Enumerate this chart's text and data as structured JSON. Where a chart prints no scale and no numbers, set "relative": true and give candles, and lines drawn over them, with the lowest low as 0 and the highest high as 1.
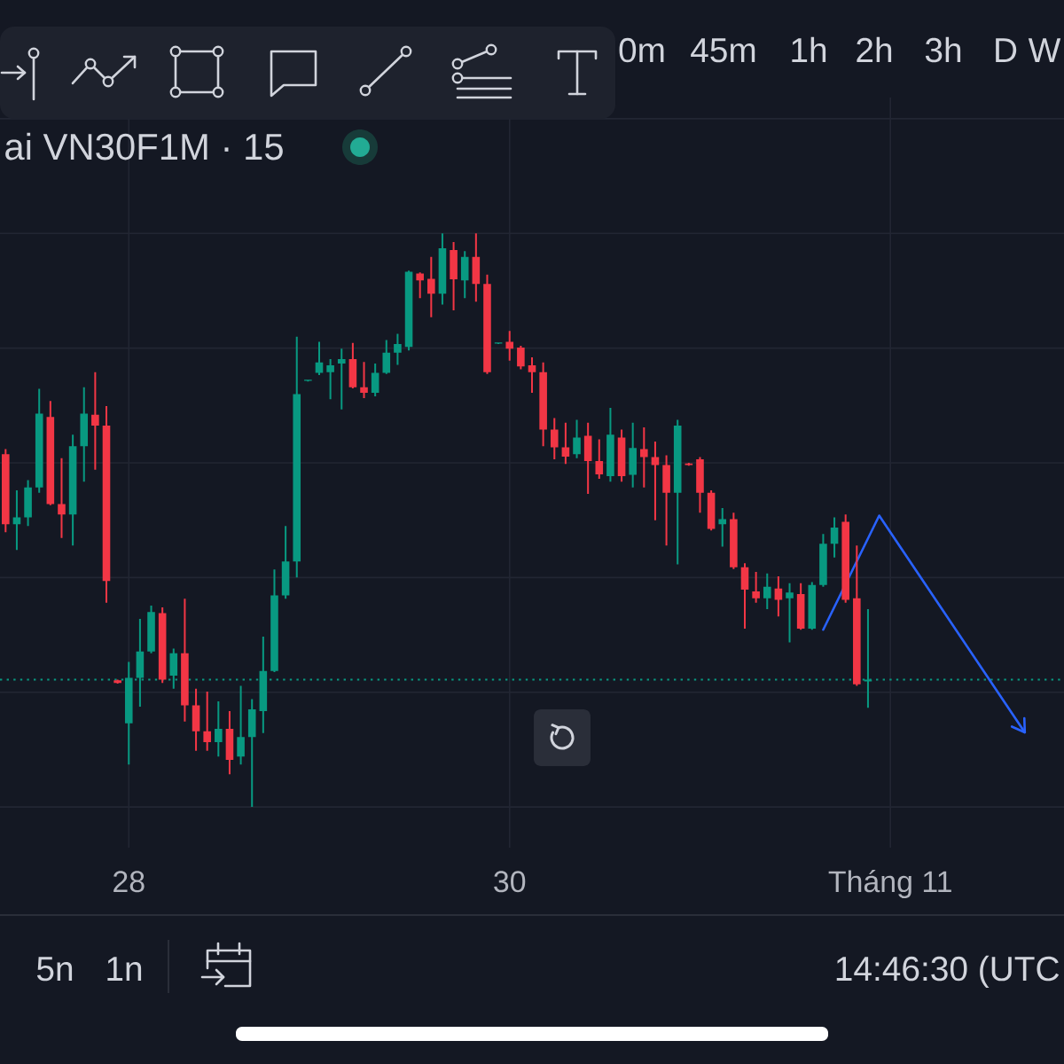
{
  "chart_data": {
    "type": "candlestick",
    "title": "ai VN30F1M · 15",
    "relative": true,
    "grid": true,
    "categories": [
      null,
      null,
      null,
      null,
      null,
      null,
      null,
      null,
      null,
      null,
      null,
      "28",
      null,
      null,
      null,
      null,
      null,
      null,
      null,
      null,
      null,
      null,
      null,
      null,
      null,
      null,
      null,
      null,
      null,
      null,
      null,
      null,
      null,
      null,
      null,
      null,
      null,
      null,
      null,
      null,
      null,
      null,
      null,
      null,
      null,
      "30",
      null,
      null,
      null,
      null,
      null,
      null,
      null,
      null,
      null,
      null,
      null,
      null,
      null,
      null,
      null,
      null,
      null,
      null,
      null,
      null,
      null,
      null,
      null,
      null,
      null,
      null,
      null,
      null,
      null,
      null,
      null,
      null,
      null,
      "Tháng 11",
      null,
      null,
      null,
      null,
      null,
      null,
      null,
      null,
      null,
      null,
      null,
      null,
      null,
      null,
      null
    ],
    "annotations": [
      "0m",
      "45m",
      "1h",
      "2h",
      "3h",
      "D",
      "W",
      "5n",
      "1n",
      "14:46:30 (UTC"
    ],
    "ref_lines": [
      {
        "axis": "y",
        "value": 0.222,
        "color": "#089981",
        "line_style": "dotted"
      }
    ],
    "series": [
      {
        "type": "line",
        "color": "#2962ff",
        "values": [
          null,
          null,
          null,
          null,
          null,
          null,
          null,
          null,
          null,
          null,
          null,
          null,
          null,
          null,
          null,
          null,
          null,
          null,
          null,
          null,
          null,
          null,
          null,
          null,
          null,
          null,
          null,
          null,
          null,
          null,
          null,
          null,
          null,
          null,
          null,
          null,
          null,
          null,
          null,
          null,
          null,
          null,
          null,
          null,
          null,
          null,
          null,
          null,
          null,
          null,
          null,
          null,
          null,
          null,
          null,
          null,
          null,
          null,
          null,
          null,
          null,
          null,
          null,
          null,
          null,
          null,
          null,
          null,
          null,
          null,
          null,
          null,
          null,
          0.309,
          null,
          null,
          null,
          null,
          0.508,
          null,
          null,
          null,
          null,
          null,
          null,
          null,
          null,
          null,
          null,
          null,
          null,
          0.13,
          null,
          null,
          null
        ]
      },
      {
        "ohlc": [
          [
            0.615,
            0.624,
            0.479,
            0.493
          ],
          [
            0.493,
            0.552,
            0.448,
            0.505
          ],
          [
            0.505,
            0.57,
            0.49,
            0.557
          ],
          [
            0.557,
            0.729,
            0.548,
            0.686
          ],
          [
            0.68,
            0.708,
            0.526,
            0.528
          ],
          [
            0.528,
            0.608,
            0.469,
            0.51
          ],
          [
            0.51,
            0.649,
            0.456,
            0.629
          ],
          [
            0.629,
            0.732,
            0.567,
            0.686
          ],
          [
            0.684,
            0.758,
            0.588,
            0.665
          ],
          [
            0.665,
            0.699,
            0.356,
            0.394
          ],
          [
            0.221,
            0.222,
            0.215,
            0.216
          ],
          [
            0.146,
            0.253,
            0.074,
            0.225
          ],
          [
            0.225,
            0.328,
            0.175,
            0.271
          ],
          [
            0.271,
            0.351,
            0.268,
            0.34
          ],
          [
            0.338,
            0.348,
            0.216,
            0.222
          ],
          [
            0.229,
            0.276,
            0.206,
            0.268
          ],
          [
            0.268,
            0.363,
            0.149,
            0.177
          ],
          [
            0.177,
            0.206,
            0.098,
            0.132
          ],
          [
            0.132,
            0.201,
            0.098,
            0.113
          ],
          [
            0.113,
            0.184,
            0.088,
            0.136
          ],
          [
            0.136,
            0.167,
            0.057,
            0.082
          ],
          [
            0.088,
            0.211,
            0.074,
            0.122
          ],
          [
            0.122,
            0.188,
            0.0,
            0.17
          ],
          [
            0.167,
            0.297,
            0.129,
            0.237
          ],
          [
            0.237,
            0.414,
            0.235,
            0.369
          ],
          [
            0.369,
            0.49,
            0.363,
            0.428
          ],
          [
            0.428,
            0.82,
            0.4,
            0.72
          ],
          [
            0.743,
            0.745,
            0.742,
            0.745
          ],
          [
            0.757,
            0.811,
            0.753,
            0.775
          ],
          [
            0.758,
            0.781,
            0.711,
            0.77
          ],
          [
            0.773,
            0.799,
            0.693,
            0.781
          ],
          [
            0.781,
            0.809,
            0.73,
            0.732
          ],
          [
            0.732,
            0.776,
            0.713,
            0.722
          ],
          [
            0.722,
            0.773,
            0.716,
            0.757
          ],
          [
            0.757,
            0.814,
            0.755,
            0.792
          ],
          [
            0.792,
            0.825,
            0.771,
            0.807
          ],
          [
            0.802,
            0.935,
            0.796,
            0.933
          ],
          [
            0.93,
            0.932,
            0.887,
            0.918
          ],
          [
            0.921,
            0.959,
            0.854,
            0.895
          ],
          [
            0.895,
            1.0,
            0.876,
            0.974
          ],
          [
            0.971,
            0.985,
            0.866,
            0.92
          ],
          [
            0.918,
            0.969,
            0.887,
            0.959
          ],
          [
            0.959,
            1.0,
            0.881,
            0.912
          ],
          [
            0.912,
            0.928,
            0.755,
            0.758
          ],
          [
            0.808,
            0.81,
            0.807,
            0.81
          ],
          [
            0.811,
            0.83,
            0.778,
            0.799
          ],
          [
            0.801,
            0.804,
            0.763,
            0.768
          ],
          [
            0.77,
            0.784,
            0.722,
            0.758
          ],
          [
            0.758,
            0.775,
            0.629,
            0.658
          ],
          [
            0.658,
            0.678,
            0.606,
            0.627
          ],
          [
            0.627,
            0.67,
            0.598,
            0.611
          ],
          [
            0.615,
            0.675,
            0.608,
            0.644
          ],
          [
            0.647,
            0.67,
            0.546,
            0.603
          ],
          [
            0.603,
            0.641,
            0.572,
            0.58
          ],
          [
            0.577,
            0.696,
            0.567,
            0.649
          ],
          [
            0.644,
            0.658,
            0.567,
            0.577
          ],
          [
            0.579,
            0.67,
            0.557,
            0.626
          ],
          [
            0.624,
            0.662,
            0.557,
            0.61
          ],
          [
            0.61,
            0.637,
            0.5,
            0.596
          ],
          [
            0.596,
            0.613,
            0.456,
            0.548
          ],
          [
            0.548,
            0.675,
            0.423,
            0.665
          ],
          [
            0.599,
            0.6,
            0.595,
            0.596
          ],
          [
            0.606,
            0.61,
            0.513,
            0.548
          ],
          [
            0.548,
            0.552,
            0.482,
            0.485
          ],
          [
            0.493,
            0.521,
            0.454,
            0.502
          ],
          [
            0.502,
            0.513,
            0.415,
            0.418
          ],
          [
            0.418,
            0.425,
            0.311,
            0.379
          ],
          [
            0.376,
            0.41,
            0.356,
            0.364
          ],
          [
            0.364,
            0.407,
            0.345,
            0.384
          ],
          [
            0.381,
            0.402,
            0.332,
            0.361
          ],
          [
            0.364,
            0.39,
            0.287,
            0.374
          ],
          [
            0.371,
            0.39,
            0.309,
            0.311
          ],
          [
            0.311,
            0.392,
            0.309,
            0.387
          ],
          [
            0.387,
            0.476,
            0.384,
            0.459
          ],
          [
            0.459,
            0.505,
            0.435,
            0.487
          ],
          [
            0.497,
            0.51,
            0.356,
            0.361
          ],
          [
            0.364,
            0.456,
            0.211,
            0.214
          ],
          [
            0.219,
            0.345,
            0.173,
            0.222
          ],
          null,
          null,
          null,
          null,
          null,
          null,
          null,
          null,
          null,
          null,
          null,
          null,
          null,
          null,
          null,
          null,
          null
        ],
        "colors": [
          "#f23645",
          "#089981",
          "#089981",
          "#089981",
          "#f23645",
          "#f23645",
          "#089981",
          "#089981",
          "#f23645",
          "#f23645",
          "#f23645",
          "#089981",
          "#089981",
          "#089981",
          "#f23645",
          "#089981",
          "#f23645",
          "#f23645",
          "#f23645",
          "#089981",
          "#f23645",
          "#089981",
          "#089981",
          "#089981",
          "#089981",
          "#089981",
          "#089981",
          "#089981",
          "#089981",
          "#089981",
          "#089981",
          "#f23645",
          "#f23645",
          "#089981",
          "#089981",
          "#089981",
          "#089981",
          "#f23645",
          "#f23645",
          "#089981",
          "#f23645",
          "#089981",
          "#f23645",
          "#f23645",
          "#089981",
          "#f23645",
          "#f23645",
          "#f23645",
          "#f23645",
          "#f23645",
          "#f23645",
          "#089981",
          "#f23645",
          "#f23645",
          "#089981",
          "#f23645",
          "#089981",
          "#f23645",
          "#f23645",
          "#f23645",
          "#089981",
          "#f23645",
          "#f23645",
          "#f23645",
          "#089981",
          "#f23645",
          "#f23645",
          "#f23645",
          "#089981",
          "#f23645",
          "#089981",
          "#f23645",
          "#089981",
          "#089981",
          "#089981",
          "#f23645",
          "#f23645",
          "#089981",
          null,
          null,
          null,
          null,
          null,
          null,
          null,
          null,
          null,
          null,
          null,
          null,
          null,
          null,
          null,
          null,
          null
        ]
      }
    ]
  }
}
